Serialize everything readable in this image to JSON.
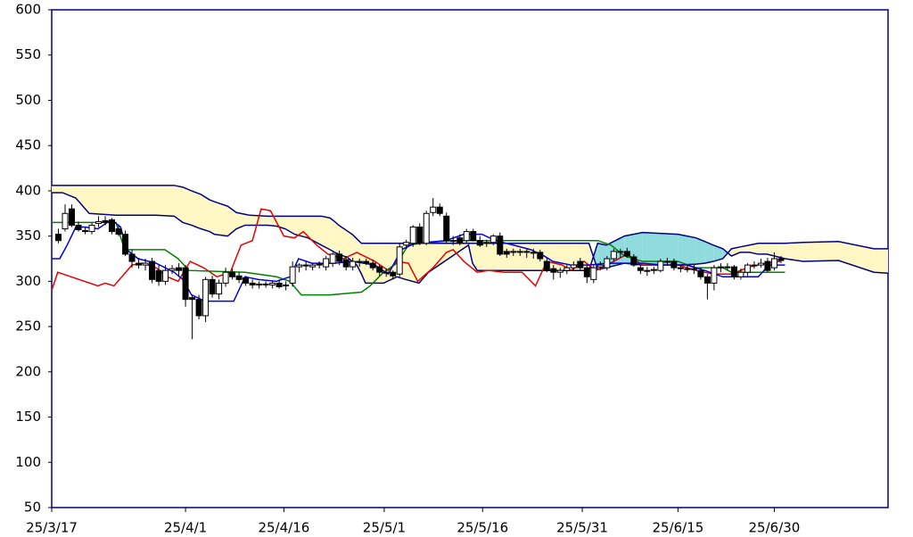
{
  "chart_data": {
    "type": "candlestick",
    "ylim": [
      50,
      600
    ],
    "yticks": [
      50,
      100,
      150,
      200,
      250,
      300,
      350,
      400,
      450,
      500,
      550,
      600
    ],
    "xlim": [
      0,
      125
    ],
    "xticks": [
      {
        "value": 0,
        "label": "25/3/17"
      },
      {
        "value": 20,
        "label": "25/4/1"
      },
      {
        "value": 34.7,
        "label": "25/4/16"
      },
      {
        "value": 49.7,
        "label": "25/5/1"
      },
      {
        "value": 64.4,
        "label": "25/5/16"
      },
      {
        "value": 79.3,
        "label": "25/5/31"
      },
      {
        "value": 93.6,
        "label": "25/6/15"
      },
      {
        "value": 108,
        "label": "25/6/30"
      }
    ],
    "up_color": "#ffffff",
    "down_color": "#000000",
    "x": [
      1,
      2,
      3,
      4,
      5,
      6,
      7,
      8,
      9,
      10,
      11,
      12,
      13,
      14,
      15,
      16,
      17,
      18,
      19,
      20,
      21,
      22,
      23,
      24,
      25,
      26,
      27,
      28,
      29,
      30,
      31,
      32,
      33,
      34,
      35,
      36,
      37,
      38,
      39,
      40,
      41,
      42,
      43,
      44,
      45,
      46,
      47,
      48,
      49,
      50,
      51,
      52,
      53,
      54,
      55,
      56,
      57,
      58,
      59,
      60,
      61,
      62,
      63,
      64,
      65,
      66,
      67,
      68,
      69,
      70,
      71,
      72,
      73,
      74,
      75,
      76,
      77,
      78,
      79,
      80,
      81,
      82,
      83,
      84,
      85,
      86,
      87,
      88,
      89,
      90,
      91,
      92,
      93,
      94,
      95,
      96,
      97,
      98,
      99,
      100,
      101,
      102,
      103,
      104,
      105,
      106,
      107,
      108,
      109
    ],
    "open": [
      352,
      358,
      380,
      362,
      356,
      355,
      364,
      367,
      368,
      358,
      352,
      330,
      320,
      318,
      322,
      312,
      300,
      312,
      315,
      315,
      282,
      280,
      262,
      302,
      286,
      298,
      310,
      306,
      304,
      298,
      296,
      297,
      296,
      298,
      295,
      298,
      316,
      318,
      316,
      318,
      316,
      320,
      330,
      324,
      316,
      322,
      322,
      320,
      316,
      310,
      310,
      308,
      340,
      342,
      360,
      342,
      376,
      382,
      372,
      345,
      348,
      345,
      355,
      345,
      342,
      343,
      350,
      333,
      332,
      332,
      333,
      332,
      332,
      322,
      314,
      310,
      312,
      315,
      322,
      315,
      302,
      316,
      315,
      325,
      332,
      333,
      327,
      315,
      312,
      312,
      312,
      322,
      322,
      315,
      314,
      314,
      312,
      305,
      298,
      315,
      316,
      316,
      305,
      310,
      318,
      318,
      322,
      315,
      325
    ],
    "high": [
      358,
      385,
      385,
      366,
      360,
      365,
      372,
      372,
      370,
      362,
      356,
      335,
      326,
      325,
      326,
      318,
      318,
      318,
      320,
      318,
      285,
      285,
      305,
      306,
      302,
      315,
      314,
      310,
      306,
      302,
      300,
      300,
      300,
      302,
      300,
      322,
      320,
      322,
      320,
      322,
      328,
      332,
      334,
      328,
      326,
      325,
      325,
      324,
      318,
      314,
      312,
      342,
      346,
      362,
      364,
      378,
      392,
      386,
      376,
      350,
      352,
      358,
      358,
      350,
      346,
      352,
      354,
      336,
      336,
      336,
      336,
      336,
      335,
      326,
      318,
      315,
      318,
      322,
      326,
      318,
      318,
      322,
      328,
      336,
      336,
      337,
      330,
      318,
      316,
      316,
      325,
      326,
      325,
      318,
      318,
      318,
      315,
      308,
      318,
      320,
      320,
      318,
      314,
      320,
      322,
      325,
      326,
      332,
      328
    ],
    "low": [
      342,
      355,
      360,
      355,
      352,
      352,
      360,
      362,
      352,
      350,
      328,
      315,
      314,
      312,
      298,
      295,
      296,
      308,
      305,
      272,
      236,
      258,
      255,
      282,
      280,
      294,
      302,
      298,
      295,
      292,
      292,
      293,
      292,
      292,
      290,
      294,
      310,
      312,
      312,
      314,
      312,
      316,
      318,
      312,
      312,
      316,
      318,
      312,
      306,
      305,
      302,
      305,
      336,
      338,
      340,
      340,
      372,
      372,
      342,
      340,
      340,
      342,
      344,
      338,
      338,
      340,
      328,
      326,
      328,
      328,
      326,
      325,
      322,
      310,
      302,
      304,
      308,
      312,
      312,
      298,
      298,
      312,
      312,
      322,
      326,
      326,
      316,
      308,
      306,
      308,
      310,
      318,
      312,
      310,
      310,
      308,
      302,
      280,
      290,
      310,
      312,
      302,
      302,
      306,
      314,
      315,
      310,
      312,
      320
    ],
    "close": [
      345,
      375,
      362,
      357,
      356,
      362,
      366,
      365,
      355,
      352,
      330,
      322,
      318,
      320,
      302,
      300,
      312,
      314,
      312,
      280,
      280,
      262,
      302,
      286,
      298,
      310,
      305,
      302,
      298,
      296,
      297,
      296,
      298,
      294,
      296,
      316,
      318,
      317,
      318,
      319,
      325,
      330,
      322,
      316,
      322,
      322,
      320,
      315,
      310,
      310,
      306,
      338,
      343,
      360,
      342,
      375,
      382,
      375,
      345,
      345,
      342,
      355,
      345,
      340,
      343,
      350,
      330,
      330,
      333,
      333,
      332,
      332,
      325,
      312,
      310,
      312,
      315,
      318,
      315,
      305,
      315,
      318,
      325,
      333,
      333,
      328,
      318,
      312,
      312,
      313,
      322,
      322,
      315,
      314,
      314,
      313,
      305,
      298,
      315,
      316,
      316,
      305,
      310,
      318,
      318,
      320,
      312,
      325,
      323
    ],
    "cloud": {
      "x": [
        0,
        1.6,
        3.6,
        5.6,
        9.6,
        15.6,
        18.3,
        19.6,
        20.9,
        22.3,
        23.6,
        24.3,
        26.3,
        27.6,
        28.9,
        29.6,
        32.3,
        33.6,
        34.9,
        36.3,
        38.3,
        40.3,
        41.6,
        42.3,
        42.9,
        44.3,
        44.9,
        45.6,
        46.3,
        46.9,
        49.6,
        51.6,
        52.9,
        54.9,
        56.3,
        60.3,
        62.3,
        62.9,
        63.6,
        66.9,
        72.3,
        77.6,
        80.3,
        81.6,
        82.9,
        85.6,
        88.3,
        93.6,
        96.3,
        97.6,
        98.9,
        100.3,
        101.6,
        102.9,
        104.3,
        105.6,
        106.9,
        109.6,
        112.3,
        117.6,
        122.9,
        125
      ],
      "senkou_a": [
        398,
        398,
        392,
        375,
        373,
        373,
        372,
        365,
        362,
        358,
        355,
        352,
        350,
        358,
        362,
        362,
        362,
        361,
        358,
        352,
        348,
        340,
        335,
        332,
        330,
        326,
        322,
        318,
        308,
        298,
        298,
        305,
        302,
        298,
        310,
        330,
        340,
        320,
        312,
        312,
        312,
        312,
        312,
        342,
        340,
        350,
        354,
        352,
        348,
        344,
        340,
        336,
        328,
        332,
        332,
        330,
        330,
        325,
        322,
        323,
        310,
        309
      ],
      "senkou_b": [
        406,
        406,
        406,
        406,
        406,
        406,
        406,
        404,
        400,
        396,
        390,
        388,
        383,
        376,
        374,
        373,
        372,
        372,
        372,
        372,
        372,
        372,
        370,
        366,
        362,
        355,
        352,
        347,
        342,
        342,
        342,
        342,
        342,
        342,
        342,
        342,
        342,
        342,
        342,
        342,
        342,
        342,
        342,
        313,
        315,
        320,
        318,
        318,
        319,
        320,
        322,
        325,
        336,
        338,
        340,
        342,
        342,
        342,
        343,
        344,
        336,
        336
      ],
      "line_color": "#000080",
      "a_above_color": "#90dcdc",
      "b_above_color": "#fff8c4"
    },
    "lines": [
      {
        "color": "#e60000",
        "x": [
          0,
          0.9,
          2.9,
          6.9,
          8,
          9.3,
          12,
          13.6,
          15.6,
          17.3,
          18.9,
          20.7,
          22.7,
          24.7,
          26.7,
          28.3,
          30,
          31.3,
          32.7,
          34.7,
          36.3,
          37.6,
          39.6,
          41.3,
          43.6,
          45.6,
          48.3,
          50.3,
          51.6,
          53.3,
          54.7,
          57,
          59,
          60,
          61.6,
          63.6,
          65.3,
          67.6,
          70.3,
          72.3,
          74,
          76.3,
          77.6,
          79.6,
          81.3,
          84,
          86,
          88.3,
          90.9,
          93.6,
          96.3,
          98.9,
          101.6,
          104.3,
          106.9,
          108.9
        ],
        "values": [
          290,
          310,
          305,
          295,
          298,
          295,
          318,
          320,
          315,
          305,
          300,
          322,
          315,
          305,
          310,
          340,
          345,
          380,
          378,
          350,
          348,
          355,
          340,
          330,
          325,
          332,
          322,
          312,
          322,
          320,
          300,
          315,
          332,
          335,
          322,
          310,
          312,
          310,
          310,
          295,
          322,
          318,
          312,
          322,
          312,
          322,
          330,
          318,
          318,
          318,
          312,
          308,
          308,
          316,
          320,
          322
        ]
      },
      {
        "color": "#008000",
        "x": [
          0,
          9.6,
          10.9,
          16.9,
          18.9,
          20.5,
          28.9,
          33.6,
          35.6,
          37.3,
          41.6,
          46.3,
          47.6,
          49.6,
          51.6,
          53.3,
          56.3,
          60.3,
          77.6,
          81.6,
          83.6,
          85.6,
          88.3,
          93.6,
          96.3,
          100.3,
          101.6,
          109.6
        ],
        "values": [
          365,
          365,
          335,
          335,
          325,
          312,
          310,
          305,
          300,
          285,
          285,
          288,
          295,
          310,
          320,
          340,
          343,
          345,
          345,
          345,
          340,
          328,
          322,
          322,
          315,
          315,
          310,
          310
        ]
      },
      {
        "color": "#0000e6",
        "x": [
          0,
          1.2,
          2.3,
          3.6,
          4.9,
          6.9,
          8.9,
          10.3,
          11.2,
          12.9,
          15.6,
          18.3,
          19.6,
          20.9,
          22.9,
          27.2,
          28.9,
          30.9,
          33.6,
          35.6,
          36.9,
          38.9,
          42.3,
          44.9,
          48.3,
          50.3,
          52.3,
          54.3,
          58.9,
          61.6,
          64.3,
          66.3,
          69,
          71.6,
          73.6,
          74.9,
          77.6,
          80.3,
          82.9,
          85.6,
          88.3,
          91.6,
          94.9,
          97.6,
          100.3,
          103.6,
          105.6,
          107.2,
          109.6
        ],
        "values": [
          325,
          325,
          340,
          360,
          360,
          358,
          368,
          360,
          335,
          325,
          320,
          310,
          302,
          285,
          278,
          278,
          305,
          302,
          300,
          305,
          325,
          320,
          320,
          322,
          318,
          308,
          335,
          342,
          345,
          352,
          352,
          345,
          340,
          335,
          328,
          322,
          318,
          318,
          320,
          320,
          320,
          318,
          318,
          312,
          305,
          305,
          305,
          318,
          318
        ]
      }
    ]
  }
}
